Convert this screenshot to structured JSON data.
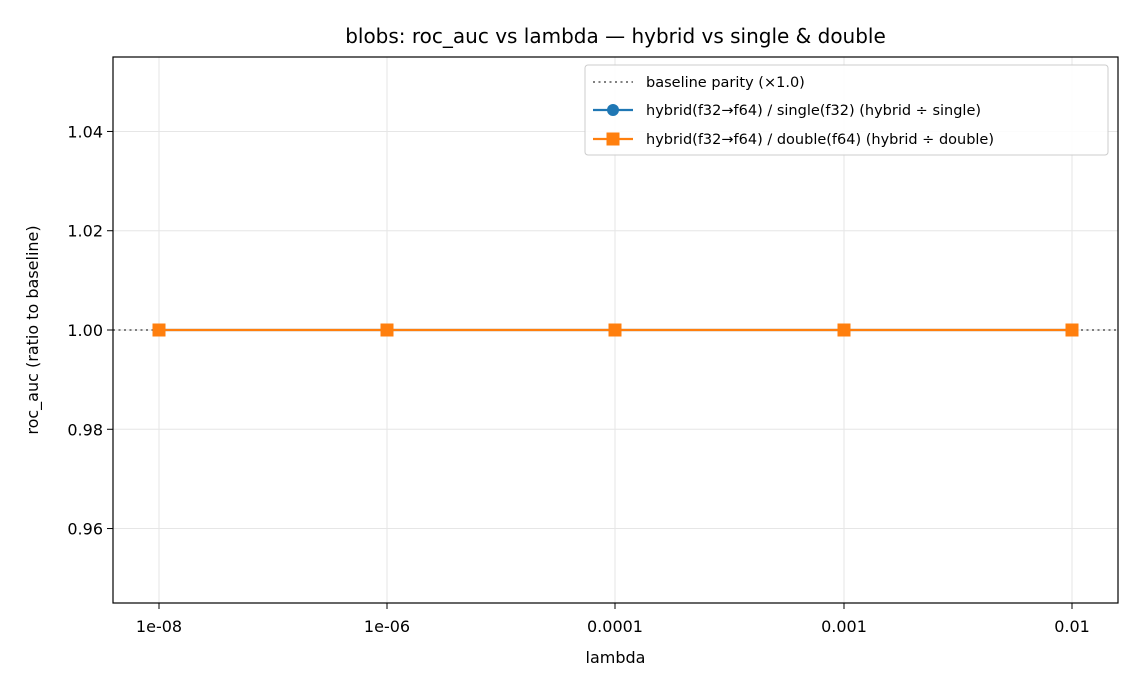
{
  "chart_data": {
    "type": "line",
    "title": "blobs: roc_auc vs lambda — hybrid vs single & double",
    "xlabel": "lambda",
    "ylabel": "roc_auc (ratio to baseline)",
    "categories": [
      "1e-08",
      "1e-06",
      "0.0001",
      "0.001",
      "0.01"
    ],
    "ylim": [
      0.945,
      1.055
    ],
    "yticks": [
      0.96,
      0.98,
      1.0,
      1.02,
      1.04
    ],
    "ytick_labels": [
      "0.96",
      "0.98",
      "1.00",
      "1.02",
      "1.04"
    ],
    "grid": true,
    "legend_position": "top-right",
    "baseline": {
      "name": "baseline parity (×1.0)",
      "value": 1.0,
      "color": "#808080",
      "style": "dotted"
    },
    "series": [
      {
        "name": "hybrid(f32→f64) / single(f32)  (hybrid ÷ single)",
        "values": [
          1.0,
          1.0,
          1.0,
          1.0,
          1.0
        ],
        "color": "#1f77b4",
        "marker": "circle"
      },
      {
        "name": "hybrid(f32→f64) / double(f64)  (hybrid ÷ double)",
        "values": [
          1.0,
          1.0,
          1.0,
          1.0,
          1.0
        ],
        "color": "#ff7f0e",
        "marker": "square"
      }
    ]
  }
}
